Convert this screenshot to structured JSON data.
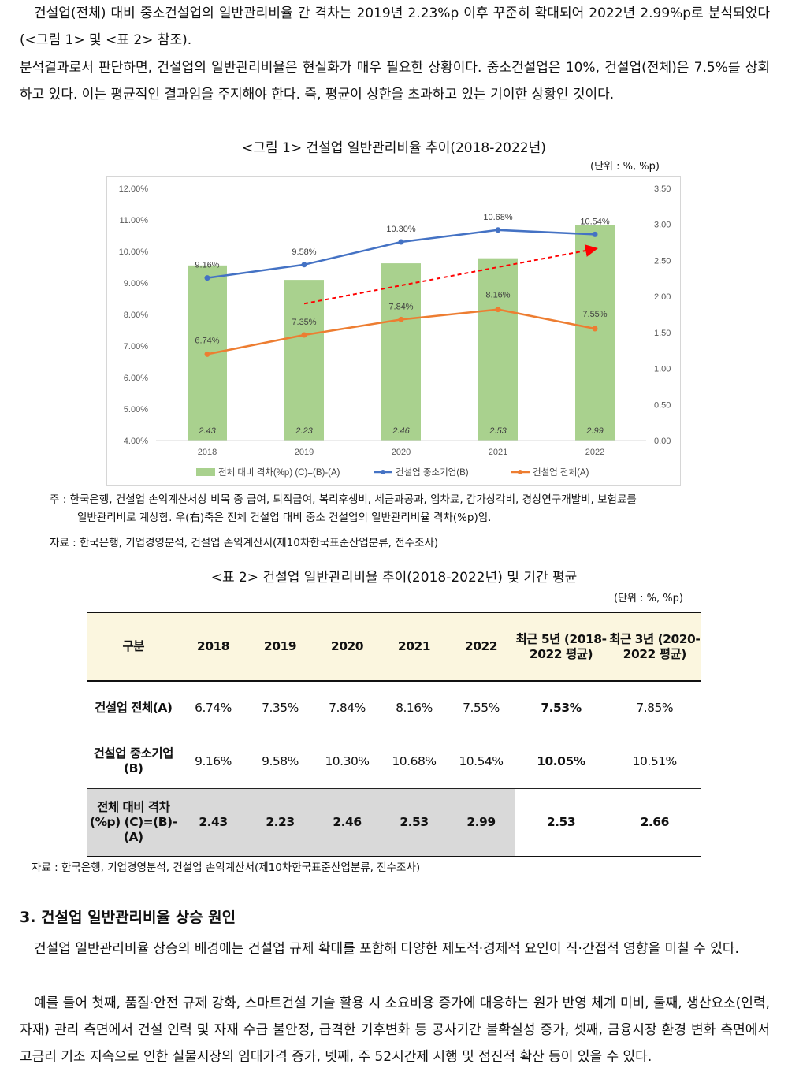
{
  "intro": {
    "p1": "건설업(전체) 대비 중소건설업의 일반관리비율 간 격차는 2019년 2.23%p 이후 꾸준히 확대되어 2022년 2.99%p로 분석되었다(<그림 1> 및 <표 2> 참조).",
    "p2": "분석결과로서 판단하면, 건설업의 일반관리비율은 현실화가 매우 필요한 상황이다. 중소건설업은 10%, 건설업(전체)은 7.5%를 상회하고 있다. 이는 평균적인 결과임을 주지해야 한다. 즉, 평균이 상한을 초과하고 있는 기이한 상황인 것이다."
  },
  "figure1": {
    "caption": "<그림 1> 건설업 일반관리비율 추이(2018-2022년)",
    "unit": "(단위 : %, %p)",
    "note_line1": "주 : 한국은행, 건설업 손익계산서상 비목 중 급여, 퇴직급여, 복리후생비, 세금과공과, 임차료, 감가상각비, 경상연구개발비, 보험료를",
    "note_line2": "일반관리비로 계상함. 우(右)축은 전체 건설업 대비 중소 건설업의 일반관리비율 격차(%p)임.",
    "source": "자료 : 한국은행, 기업경영분석, 건설업 손익계산서(제10차한국표준산업분류, 전수조사)"
  },
  "chart_data": {
    "type": "bar",
    "categories": [
      "2018",
      "2019",
      "2020",
      "2021",
      "2022"
    ],
    "left_axis": {
      "ylim": [
        4.0,
        12.0
      ],
      "ticks": [
        "4.00%",
        "5.00%",
        "6.00%",
        "7.00%",
        "8.00%",
        "9.00%",
        "10.00%",
        "11.00%",
        "12.00%"
      ]
    },
    "right_axis": {
      "ylim": [
        0.0,
        3.5
      ],
      "ticks": [
        "0.00",
        "0.50",
        "1.00",
        "1.50",
        "2.00",
        "2.50",
        "3.00",
        "3.50"
      ]
    },
    "grid": false,
    "legend_position": "bottom",
    "series": [
      {
        "name": "전체 대비 격차(%p) (C)=(B)-(A)",
        "type": "bar",
        "axis": "right",
        "color": "#a9d18e",
        "values": [
          2.43,
          2.23,
          2.46,
          2.53,
          2.99
        ],
        "labels": [
          "2.43",
          "2.23",
          "2.46",
          "2.53",
          "2.99"
        ]
      },
      {
        "name": "건설업 중소기업(B)",
        "type": "line",
        "axis": "left",
        "color": "#4472c4",
        "values": [
          9.16,
          9.58,
          10.3,
          10.68,
          10.54
        ],
        "labels": [
          "9.16%",
          "9.58%",
          "10.30%",
          "10.68%",
          "10.54%"
        ]
      },
      {
        "name": "건설업 전체(A)",
        "type": "line",
        "axis": "left",
        "color": "#ed7d31",
        "values": [
          6.74,
          7.35,
          7.84,
          8.16,
          7.55
        ],
        "labels": [
          "6.74%",
          "7.35%",
          "7.84%",
          "8.16%",
          "7.55%"
        ]
      }
    ],
    "trend_arrow": {
      "color": "#ff0000",
      "style": "dashed",
      "from_category": "2019",
      "to_category": "2022",
      "from_value": 1.9,
      "to_value": 2.66
    }
  },
  "table2": {
    "caption": "<표 2> 건설업 일반관리비율 추이(2018-2022년) 및 기간 평균",
    "unit": "(단위 : %, %p)",
    "headers": [
      "구분",
      "2018",
      "2019",
      "2020",
      "2021",
      "2022",
      "최근 5년 (2018-2022 평균)",
      "최근 3년 (2020-2022 평균)"
    ],
    "rows": [
      {
        "label": "건설업 전체(A)",
        "cells": [
          "6.74%",
          "7.35%",
          "7.84%",
          "8.16%",
          "7.55%",
          "7.53%",
          "7.85%"
        ]
      },
      {
        "label": "건설업 중소기업(B)",
        "cells": [
          "9.16%",
          "9.58%",
          "10.30%",
          "10.68%",
          "10.54%",
          "10.05%",
          "10.51%"
        ]
      },
      {
        "label": "전체 대비 격차(%p) (C)=(B)-(A)",
        "cells": [
          "2.43",
          "2.23",
          "2.46",
          "2.53",
          "2.99",
          "2.53",
          "2.66"
        ]
      }
    ],
    "source": "자료 : 한국은행, 기업경영분석, 건설업 손익계산서(제10차한국표준산업분류, 전수조사)"
  },
  "section3": {
    "title": "3. 건설업 일반관리비율 상승 원인",
    "p1": "건설업 일반관리비율 상승의 배경에는 건설업 규제 확대를 포함해 다양한 제도적·경제적 요인이 직·간접적 영향을 미칠 수 있다.",
    "p2": "예를 들어 첫째, 품질·안전 규제 강화, 스마트건설 기술 활용 시 소요비용 증가에 대응하는 원가 반영 체계 미비, 둘째, 생산요소(인력, 자재) 관리 측면에서 건설 인력 및 자재 수급 불안정, 급격한 기후변화 등 공사기간 불확실성 증가, 셋째, 금융시장 환경 변화 측면에서 고금리 기조 지속으로 인한 실물시장의 임대가격 증가, 넷째, 주 52시간제 시행 및 점진적 확산 등이 있을 수 있다."
  }
}
